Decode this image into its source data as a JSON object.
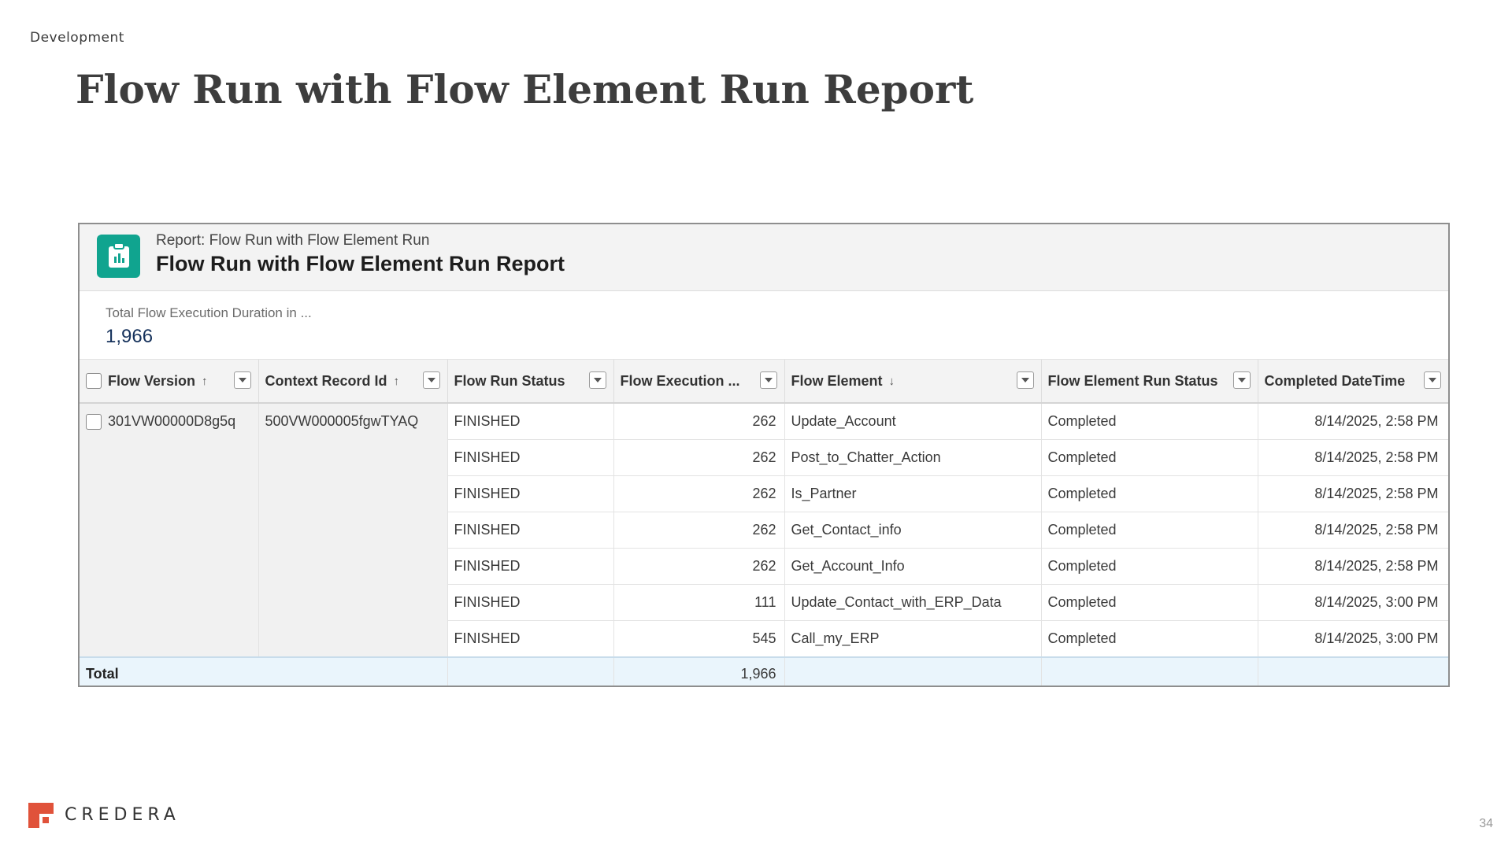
{
  "section_label": "Development",
  "slide_title": "Flow Run with Flow Element Run Report",
  "report": {
    "kicker": "Report: Flow Run with Flow Element Run",
    "title": "Flow Run with Flow Element Run Report",
    "icon": "report-clipboard-icon",
    "icon_color": "#10a48f",
    "summary_label": "Total Flow Execution Duration in ...",
    "summary_value": "1,966",
    "columns": [
      {
        "label": "Flow Version",
        "sort": "↑"
      },
      {
        "label": "Context Record Id",
        "sort": "↑"
      },
      {
        "label": "Flow Run Status",
        "sort": ""
      },
      {
        "label": "Flow Execution ...",
        "sort": ""
      },
      {
        "label": "Flow Element",
        "sort": "↓"
      },
      {
        "label": "Flow Element Run Status",
        "sort": ""
      },
      {
        "label": "Completed DateTime",
        "sort": ""
      }
    ],
    "group": {
      "flow_version": "301VW00000D8g5q",
      "context_record_id": "500VW000005fgwTYAQ"
    },
    "rows": [
      {
        "status": "FINISHED",
        "duration": "262",
        "element": "Update_Account",
        "element_status": "Completed",
        "completed": "8/14/2025, 2:58 PM"
      },
      {
        "status": "FINISHED",
        "duration": "262",
        "element": "Post_to_Chatter_Action",
        "element_status": "Completed",
        "completed": "8/14/2025, 2:58 PM"
      },
      {
        "status": "FINISHED",
        "duration": "262",
        "element": "Is_Partner",
        "element_status": "Completed",
        "completed": "8/14/2025, 2:58 PM"
      },
      {
        "status": "FINISHED",
        "duration": "262",
        "element": "Get_Contact_info",
        "element_status": "Completed",
        "completed": "8/14/2025, 2:58 PM"
      },
      {
        "status": "FINISHED",
        "duration": "262",
        "element": "Get_Account_Info",
        "element_status": "Completed",
        "completed": "8/14/2025, 2:58 PM"
      },
      {
        "status": "FINISHED",
        "duration": "111",
        "element": "Update_Contact_with_ERP_Data",
        "element_status": "Completed",
        "completed": "8/14/2025, 3:00 PM"
      },
      {
        "status": "FINISHED",
        "duration": "545",
        "element": "Call_my_ERP",
        "element_status": "Completed",
        "completed": "8/14/2025, 3:00 PM"
      }
    ],
    "total_label": "Total",
    "total_duration": "1,966"
  },
  "footer": {
    "brand": "CREDERA",
    "logo_color": "#e0523a",
    "page_number": "34"
  }
}
